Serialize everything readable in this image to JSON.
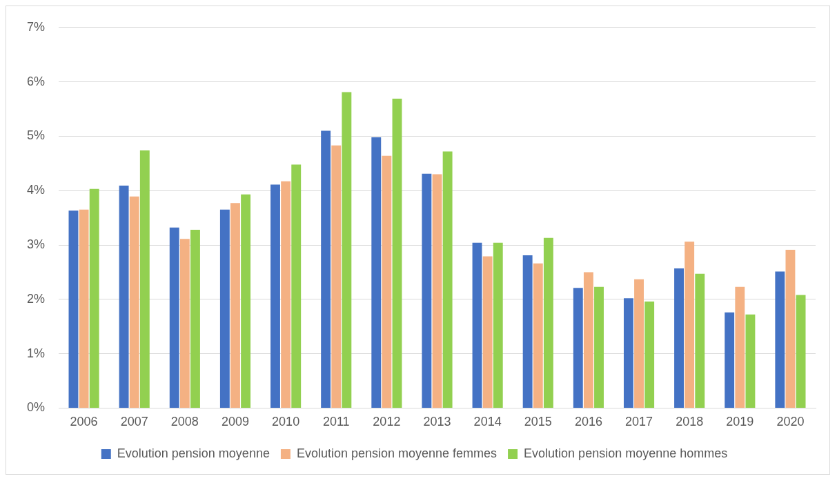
{
  "chart_data": {
    "type": "bar",
    "categories": [
      "2006",
      "2007",
      "2008",
      "2009",
      "2010",
      "2011",
      "2012",
      "2013",
      "2014",
      "2015",
      "2016",
      "2017",
      "2018",
      "2019",
      "2020"
    ],
    "series": [
      {
        "name": "Evolution pension moyenne",
        "color": "#4472c4",
        "values": [
          3.63,
          4.09,
          3.32,
          3.65,
          4.11,
          5.1,
          4.98,
          4.31,
          3.04,
          2.81,
          2.21,
          2.02,
          2.57,
          1.76,
          2.51
        ]
      },
      {
        "name": "Evolution pension moyenne femmes",
        "color": "#f4b183",
        "values": [
          3.65,
          3.89,
          3.11,
          3.77,
          4.17,
          4.83,
          4.64,
          4.3,
          2.79,
          2.66,
          2.5,
          2.37,
          3.06,
          2.23,
          2.91
        ]
      },
      {
        "name": "Evolution pension moyenne hommes",
        "color": "#92d050",
        "values": [
          4.03,
          4.74,
          3.28,
          3.93,
          4.48,
          5.81,
          5.69,
          4.72,
          3.04,
          3.13,
          2.23,
          1.96,
          2.47,
          1.72,
          2.08
        ]
      }
    ],
    "ylim": [
      0,
      7
    ],
    "yticks": [
      {
        "value": 0,
        "label": "0%"
      },
      {
        "value": 1,
        "label": "1%"
      },
      {
        "value": 2,
        "label": "2%"
      },
      {
        "value": 3,
        "label": "3%"
      },
      {
        "value": 4,
        "label": "4%"
      },
      {
        "value": 5,
        "label": "5%"
      },
      {
        "value": 6,
        "label": "6%"
      },
      {
        "value": 7,
        "label": "7%"
      }
    ],
    "grid": "y",
    "legend": "bottom"
  }
}
